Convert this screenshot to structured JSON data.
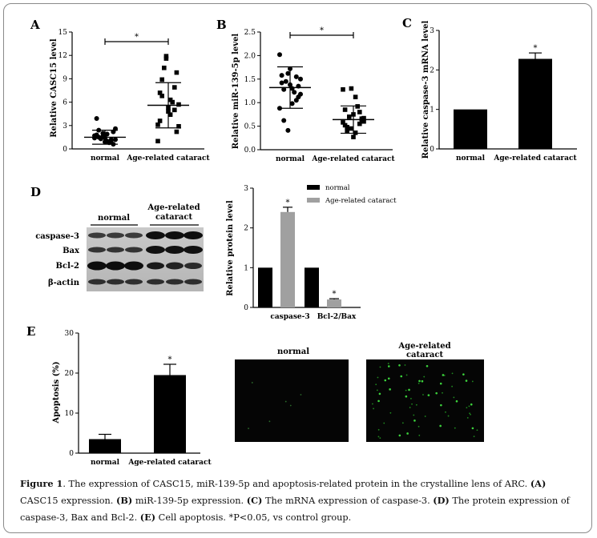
{
  "panels": {
    "A": {
      "letter": "A",
      "ylabel": "Relative CASC15 level"
    },
    "B": {
      "letter": "B",
      "ylabel": "Relative miR-139-5p level"
    },
    "C": {
      "letter": "C",
      "ylabel": "Relative caspase-3 mRNA level"
    },
    "D": {
      "letter": "D",
      "ylabel": "Relative protein level",
      "blot_header_normal": "normal",
      "blot_header_arc_line1": "Age-related",
      "blot_header_arc_line2": "cataract",
      "blot_rows": [
        "caspase-3",
        "Bax",
        "Bcl-2",
        "β-actin"
      ]
    },
    "E": {
      "letter": "E",
      "ylabel": "Apoptosis (%)",
      "image_label_normal": "normal",
      "image_label_arc_line1": "Age-related",
      "image_label_arc_line2": "cataract"
    }
  },
  "significance_mark": "*",
  "chart_data": [
    {
      "id": "A",
      "type": "scatter",
      "categories": [
        "normal",
        "Age-related cataract"
      ],
      "ylabel": "Relative CASC15 level",
      "ylim": [
        0,
        15
      ],
      "yticks": [
        0,
        3,
        6,
        9,
        12,
        15
      ],
      "mean": [
        1.5,
        5.6
      ],
      "sd": [
        0.9,
        2.9
      ],
      "points": [
        [
          1.4,
          1.6,
          1.2,
          1.8,
          0.9,
          2.2,
          1.5,
          1.0,
          2.6,
          1.3,
          0.8,
          1.7,
          2.0,
          1.1,
          3.9,
          1.4,
          0.6,
          2.4,
          1.9,
          1.2
        ],
        [
          1.0,
          11.6,
          7.9,
          3.6,
          5.3,
          9.8,
          6.8,
          4.4,
          2.9,
          10.4,
          6.0,
          3.1,
          11.9,
          5.0,
          7.2,
          4.8,
          2.2,
          8.9,
          6.3,
          5.7
        ]
      ],
      "significance": "*"
    },
    {
      "id": "B",
      "type": "scatter",
      "categories": [
        "normal",
        "Age-related cataract"
      ],
      "ylabel": "Relative miR-139-5p level",
      "ylim": [
        0,
        2.5
      ],
      "yticks": [
        0,
        0.5,
        1.0,
        1.5,
        2.0,
        2.5
      ],
      "mean": [
        1.32,
        0.64
      ],
      "sd": [
        0.44,
        0.29
      ],
      "points": [
        [
          2.02,
          1.62,
          1.55,
          1.42,
          1.72,
          1.35,
          1.28,
          0.98,
          1.18,
          1.45,
          1.22,
          0.88,
          0.41,
          1.05,
          1.58,
          1.38,
          1.12,
          0.62,
          1.3,
          1.5
        ],
        [
          1.28,
          1.3,
          0.55,
          0.85,
          0.75,
          0.62,
          0.48,
          0.36,
          0.67,
          0.7,
          0.92,
          0.58,
          0.45,
          0.8,
          0.52,
          0.27,
          0.66,
          0.4,
          1.12,
          0.6
        ]
      ],
      "significance": "*"
    },
    {
      "id": "C",
      "type": "bar",
      "categories": [
        "normal",
        "Age-related cataract"
      ],
      "ylabel": "Relative caspase-3 mRNA level",
      "ylim": [
        0,
        3
      ],
      "yticks": [
        0,
        1,
        2,
        3
      ],
      "values": [
        1.0,
        2.28
      ],
      "errors": [
        0,
        0.15
      ],
      "significance": [
        false,
        true
      ]
    },
    {
      "id": "D",
      "type": "bar",
      "categories": [
        "caspase-3",
        "Bcl-2/Bax"
      ],
      "ylabel": "Relative protein level",
      "ylim": [
        0,
        3
      ],
      "yticks": [
        0,
        1,
        2,
        3
      ],
      "series": [
        {
          "name": "normal",
          "color": "#000000",
          "values": [
            1.0,
            1.0
          ],
          "errors": [
            0,
            0
          ]
        },
        {
          "name": "Age-related cataract",
          "color": "#a0a0a0",
          "values": [
            2.4,
            0.2
          ],
          "errors": [
            0.12,
            0.02
          ]
        }
      ],
      "legend": "top-right",
      "significance": "*"
    },
    {
      "id": "E",
      "type": "bar",
      "categories": [
        "normal",
        "Age-related cataract"
      ],
      "ylabel": "Apoptosis (%)",
      "ylim": [
        0,
        30
      ],
      "yticks": [
        0,
        10,
        20,
        30
      ],
      "values": [
        3.5,
        19.5
      ],
      "errors": [
        1.2,
        2.7
      ],
      "significance": [
        false,
        true
      ]
    }
  ],
  "caption": {
    "figure_label": "Figure 1",
    "intro": ". The expression of CASC15, miR-139-5p and apoptosis-related protein in the crystalline lens of ARC. ",
    "a_label": "(A)",
    "a_text": " CASC15 expression. ",
    "b_label": "(B)",
    "b_text": " miR-139-5p expression. ",
    "c_label": "(C)",
    "c_text": " The mRNA expression of caspase-3. ",
    "d_label": "(D)",
    "d_text": " The protein expression of caspase-3, Bax and Bcl-2. ",
    "e_label": "(E)",
    "e_text": " Cell apoptosis. *P<0.05, vs control group."
  }
}
